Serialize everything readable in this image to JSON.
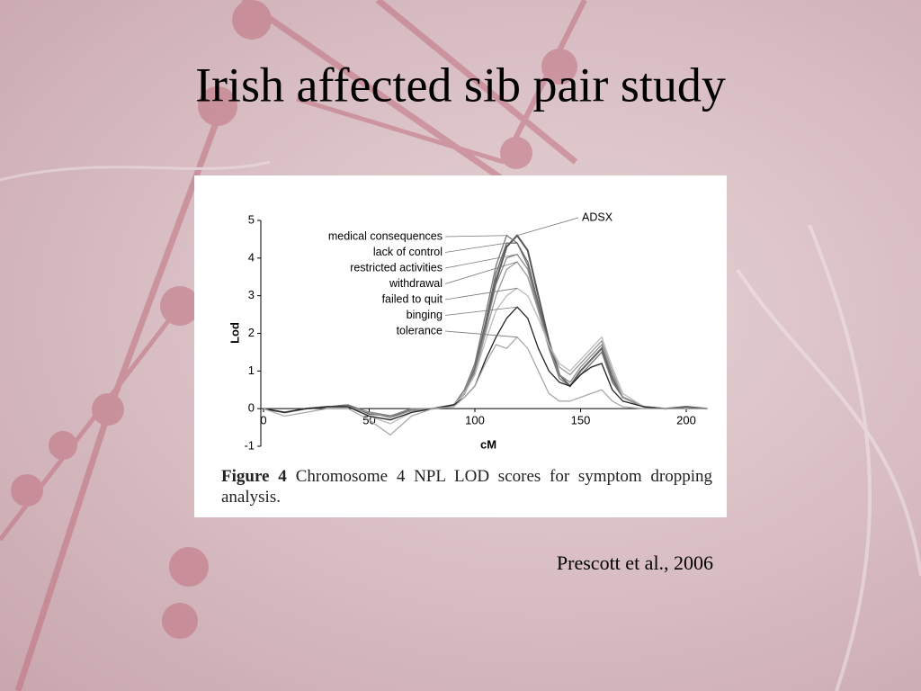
{
  "slide": {
    "title": "Irish affected sib pair study",
    "citation": "Prescott et al., 2006"
  },
  "chart_data": {
    "type": "line",
    "figure_label": "Figure 4",
    "caption": "Chromosome 4 NPL LOD scores for symptom dropping analysis.",
    "x_label": "cM",
    "y_label": "Lod",
    "x": [
      0,
      10,
      20,
      30,
      40,
      50,
      60,
      70,
      80,
      90,
      95,
      100,
      105,
      110,
      115,
      120,
      125,
      130,
      135,
      140,
      145,
      150,
      155,
      160,
      165,
      170,
      180,
      190,
      200,
      210
    ],
    "series": [
      {
        "name": "ADSX",
        "color": "#555555",
        "values": [
          0,
          -0.1,
          0,
          0.05,
          0.05,
          -0.1,
          -0.2,
          -0.05,
          0,
          0.1,
          0.4,
          1.0,
          2.2,
          3.4,
          4.3,
          4.6,
          4.2,
          3.0,
          1.8,
          0.9,
          0.6,
          1.0,
          1.3,
          1.6,
          0.8,
          0.3,
          0.05,
          0,
          0.05,
          0
        ]
      },
      {
        "name": "medical consequences",
        "color": "#777777",
        "values": [
          0,
          -0.1,
          0,
          0.05,
          0.1,
          -0.1,
          -0.2,
          0,
          0,
          0.1,
          0.5,
          1.2,
          2.5,
          3.8,
          4.6,
          4.4,
          3.8,
          2.7,
          1.6,
          0.8,
          0.6,
          0.9,
          1.2,
          1.5,
          0.7,
          0.3,
          0.05,
          0,
          0,
          0
        ]
      },
      {
        "name": "lack of control",
        "color": "#666666",
        "values": [
          0,
          -0.1,
          0,
          0.05,
          0.1,
          -0.15,
          -0.2,
          0,
          0,
          0.1,
          0.4,
          1.1,
          2.3,
          3.6,
          4.4,
          4.4,
          3.9,
          2.8,
          1.7,
          0.9,
          0.6,
          1.0,
          1.3,
          1.6,
          0.8,
          0.3,
          0.05,
          0,
          0,
          0
        ]
      },
      {
        "name": "restricted activities",
        "color": "#888888",
        "values": [
          0,
          -0.1,
          0,
          0.05,
          0.05,
          -0.1,
          -0.2,
          0,
          0,
          0.1,
          0.4,
          1.0,
          2.1,
          3.3,
          4.0,
          4.1,
          3.7,
          2.6,
          1.6,
          0.9,
          0.7,
          1.1,
          1.4,
          1.7,
          0.9,
          0.3,
          0.05,
          0,
          0,
          0
        ]
      },
      {
        "name": "withdrawal",
        "color": "#999999",
        "values": [
          0,
          -0.1,
          0,
          0.05,
          0.05,
          -0.1,
          -0.25,
          -0.05,
          0,
          0.1,
          0.4,
          0.9,
          2.0,
          3.0,
          3.7,
          3.9,
          3.5,
          2.6,
          1.7,
          1.1,
          0.9,
          1.2,
          1.5,
          1.8,
          1.0,
          0.3,
          0.05,
          0,
          0,
          0
        ]
      },
      {
        "name": "failed to quit",
        "color": "#bbbbbb",
        "values": [
          0,
          -0.1,
          0,
          0.05,
          0.05,
          -0.2,
          -0.4,
          -0.1,
          0,
          0.1,
          0.4,
          0.9,
          1.8,
          2.6,
          3.0,
          3.2,
          3.0,
          2.4,
          1.7,
          1.2,
          1.0,
          1.3,
          1.6,
          1.9,
          1.1,
          0.4,
          0.05,
          0,
          0,
          0
        ]
      },
      {
        "name": "binging",
        "color": "#222222",
        "values": [
          0,
          -0.1,
          0,
          0.05,
          0.05,
          -0.2,
          -0.3,
          -0.1,
          0,
          0.1,
          0.3,
          0.6,
          1.3,
          1.9,
          2.4,
          2.7,
          2.4,
          1.6,
          1.0,
          0.7,
          0.6,
          0.9,
          1.1,
          1.2,
          0.5,
          0.2,
          0.05,
          0,
          0,
          0
        ]
      },
      {
        "name": "tolerance",
        "color": "#aaaaaa",
        "values": [
          0,
          -0.2,
          -0.1,
          0,
          0,
          -0.3,
          -0.7,
          -0.2,
          0,
          0.05,
          0.3,
          0.6,
          1.2,
          1.7,
          1.6,
          1.9,
          1.6,
          1.0,
          0.4,
          0.2,
          0.2,
          0.3,
          0.4,
          0.5,
          0.2,
          0.05,
          0,
          0,
          0,
          0
        ]
      }
    ],
    "xlim": [
      -1,
      210
    ],
    "ylim": [
      -1,
      5
    ],
    "xticks": [
      0,
      50,
      100,
      150,
      200
    ],
    "yticks": [
      -1,
      0,
      1,
      2,
      3,
      4,
      5
    ]
  }
}
